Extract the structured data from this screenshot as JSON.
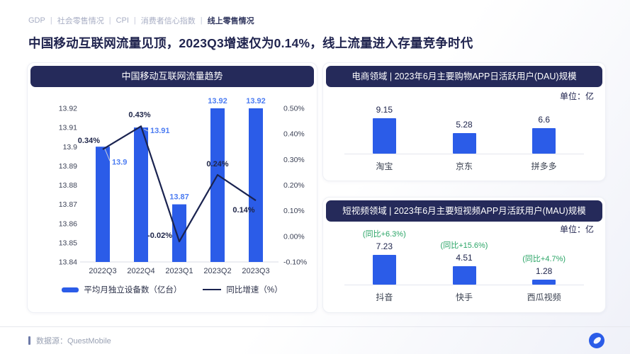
{
  "nav": {
    "separator": "|",
    "items": [
      {
        "label": "GDP",
        "active": false
      },
      {
        "label": "社会零售情况",
        "active": false
      },
      {
        "label": "CPI",
        "active": false
      },
      {
        "label": "消费者信心指数",
        "active": false
      },
      {
        "label": "线上零售情况",
        "active": true
      }
    ]
  },
  "title": "中国移动互联网流量见顶，2023Q3增速仅为0.14%，线上流量进入存量竞争时代",
  "footer": {
    "source_label": "数据源：QuestMobile"
  },
  "colors": {
    "bar_blue": "#2b5ce8",
    "line_navy": "#1a2350",
    "label_blue": "#4c7cf2",
    "header_navy": "#252a5a",
    "green": "#2ba567"
  },
  "chart_data": [
    {
      "id": "traffic_trend",
      "type": "bar",
      "subtype": "bar+line combo, dual axis",
      "title": "中国移动互联网流量趋势",
      "categories": [
        "2022Q3",
        "2022Q4",
        "2023Q1",
        "2023Q2",
        "2023Q3"
      ],
      "series": [
        {
          "name": "平均月独立设备数（亿台）",
          "type": "bar",
          "axis": "left",
          "values": [
            13.9,
            13.91,
            13.87,
            13.92,
            13.92
          ],
          "labels": [
            "13.9",
            "13.91",
            "13.87",
            "13.92",
            "13.92"
          ]
        },
        {
          "name": "同比增速（%）",
          "type": "line",
          "axis": "right",
          "values": [
            0.34,
            0.43,
            -0.02,
            0.24,
            0.14
          ],
          "labels": [
            "0.34%",
            "0.43%",
            "-0.02%",
            "0.24%",
            "0.14%"
          ]
        }
      ],
      "left_axis": {
        "min": 13.84,
        "max": 13.92,
        "ticks": [
          "13.92",
          "13.91",
          "13.9",
          "13.89",
          "13.88",
          "13.87",
          "13.86",
          "13.85",
          "13.84"
        ]
      },
      "right_axis": {
        "min": -0.1,
        "max": 0.5,
        "ticks": [
          "0.50%",
          "0.40%",
          "0.30%",
          "0.20%",
          "0.10%",
          "0.00%",
          "-0.10%"
        ]
      },
      "grid": false,
      "legend_position": "bottom"
    },
    {
      "id": "dau",
      "type": "bar",
      "title": "电商领域 | 2023年6月主要购物APP日活跃用户(DAU)规模",
      "unit": "单位：亿",
      "categories": [
        "淘宝",
        "京东",
        "拼多多"
      ],
      "values": [
        9.15,
        5.28,
        6.6
      ],
      "labels": [
        "9.15",
        "5.28",
        "6.6"
      ],
      "grid": false
    },
    {
      "id": "mau",
      "type": "bar",
      "title": "短视频领域 | 2023年6月主要短视频APP月活跃用户(MAU)规模",
      "unit": "单位：亿",
      "categories": [
        "抖音",
        "快手",
        "西瓜视频"
      ],
      "values": [
        7.23,
        4.51,
        1.28
      ],
      "labels": [
        "7.23",
        "4.51",
        "1.28"
      ],
      "growth_labels": [
        "(同比+6.3%)",
        "(同比+15.6%)",
        "(同比+4.7%)"
      ],
      "grid": false
    }
  ]
}
